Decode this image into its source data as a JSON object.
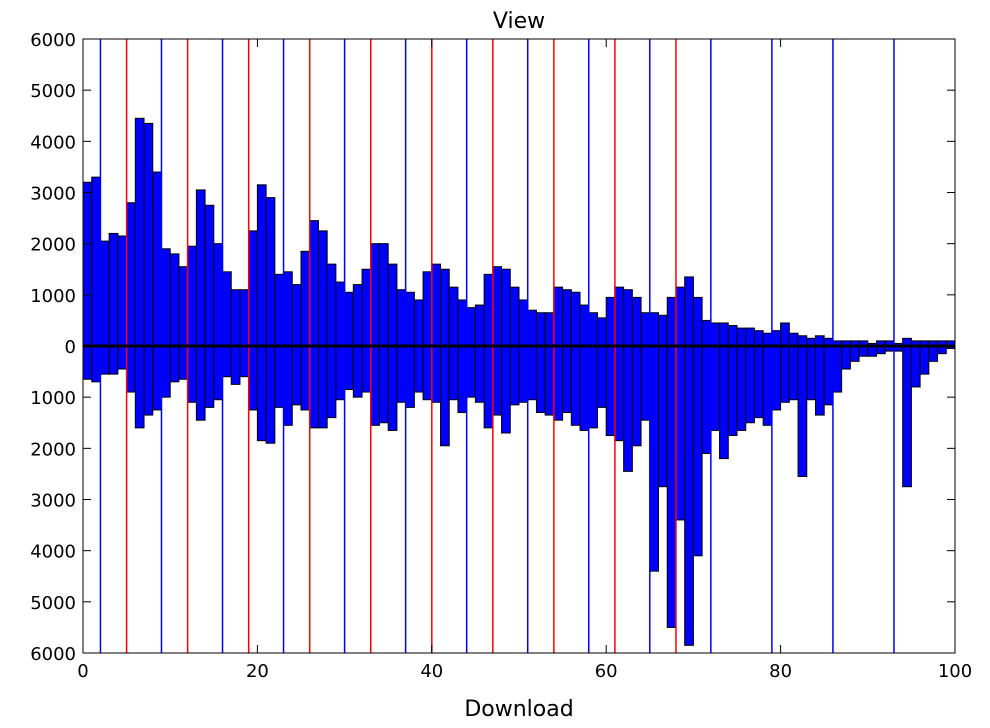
{
  "chart_data": {
    "type": "bar",
    "title": "View",
    "xlabel": "Download",
    "ylabel": "",
    "xlim": [
      0,
      100
    ],
    "ylim": [
      -6000,
      6000
    ],
    "x_ticks": [
      0,
      20,
      40,
      60,
      80,
      100
    ],
    "x_tick_labels": [
      "0",
      "20",
      "40",
      "60",
      "80",
      "100"
    ],
    "y_ticks": [
      6000,
      5000,
      4000,
      3000,
      2000,
      1000,
      0,
      -1000,
      -2000,
      -3000,
      -4000,
      -5000,
      -6000
    ],
    "y_tick_labels": [
      "6000",
      "5000",
      "4000",
      "3000",
      "2000",
      "1000",
      "0",
      "1000",
      "2000",
      "3000",
      "4000",
      "5000",
      "6000"
    ],
    "bar_color": "#0000ff",
    "bar_edge_color": "#000000",
    "grid": false,
    "x": [
      0,
      1,
      2,
      3,
      4,
      5,
      6,
      7,
      8,
      9,
      10,
      11,
      12,
      13,
      14,
      15,
      16,
      17,
      18,
      19,
      20,
      21,
      22,
      23,
      24,
      25,
      26,
      27,
      28,
      29,
      30,
      31,
      32,
      33,
      34,
      35,
      36,
      37,
      38,
      39,
      40,
      41,
      42,
      43,
      44,
      45,
      46,
      47,
      48,
      49,
      50,
      51,
      52,
      53,
      54,
      55,
      56,
      57,
      58,
      59,
      60,
      61,
      62,
      63,
      64,
      65,
      66,
      67,
      68,
      69,
      70,
      71,
      72,
      73,
      74,
      75,
      76,
      77,
      78,
      79,
      80,
      81,
      82,
      83,
      84,
      85,
      86,
      87,
      88,
      89,
      90,
      91,
      92,
      93,
      94,
      95,
      96,
      97,
      98,
      99
    ],
    "series": [
      {
        "values": [
          3200,
          3300,
          2050,
          2200,
          2150,
          2800,
          4450,
          4350,
          3400,
          1900,
          1800,
          1550,
          1950,
          3050,
          2750,
          2000,
          1450,
          1100,
          1100,
          2250,
          3150,
          2900,
          1400,
          1450,
          1200,
          1850,
          2450,
          2250,
          1600,
          1250,
          1050,
          1200,
          1500,
          2000,
          2000,
          1600,
          1100,
          1050,
          900,
          1450,
          1600,
          1500,
          1150,
          900,
          750,
          800,
          1400,
          1550,
          1500,
          1150,
          900,
          700,
          650,
          650,
          1150,
          1100,
          1050,
          800,
          650,
          550,
          950,
          1150,
          1100,
          950,
          650,
          650,
          600,
          950,
          1150,
          1350,
          950,
          500,
          450,
          450,
          400,
          350,
          350,
          300,
          250,
          300,
          450,
          250,
          200,
          150,
          200,
          150,
          100,
          100,
          100,
          100,
          50,
          100,
          100,
          50,
          150,
          100,
          100,
          100,
          100,
          100
        ]
      },
      {
        "values": [
          -650,
          -700,
          -550,
          -550,
          -450,
          -900,
          -1600,
          -1350,
          -1250,
          -1000,
          -700,
          -650,
          -1100,
          -1450,
          -1200,
          -1050,
          -600,
          -750,
          -600,
          -1250,
          -1850,
          -1900,
          -1200,
          -1550,
          -1150,
          -1250,
          -1600,
          -1600,
          -1400,
          -1050,
          -850,
          -1000,
          -900,
          -1550,
          -1500,
          -1650,
          -1100,
          -1200,
          -900,
          -1050,
          -1100,
          -1950,
          -1050,
          -1300,
          -1000,
          -1100,
          -1600,
          -1350,
          -1700,
          -1150,
          -1100,
          -1050,
          -1300,
          -1350,
          -1450,
          -1300,
          -1550,
          -1650,
          -1600,
          -1200,
          -1750,
          -1850,
          -2450,
          -1950,
          -1450,
          -4400,
          -2750,
          -5500,
          -3400,
          -5850,
          -4100,
          -2100,
          -1650,
          -2200,
          -1750,
          -1650,
          -1500,
          -1400,
          -1550,
          -1250,
          -1100,
          -1050,
          -2550,
          -1050,
          -1350,
          -1150,
          -900,
          -450,
          -300,
          -200,
          -200,
          -150,
          -100,
          -100,
          -2750,
          -800,
          -550,
          -300,
          -150,
          -50
        ]
      }
    ],
    "vertical_lines": [
      {
        "x": 2,
        "color": "#0000ff"
      },
      {
        "x": 9,
        "color": "#0000ff"
      },
      {
        "x": 16,
        "color": "#0000ff"
      },
      {
        "x": 23,
        "color": "#0000ff"
      },
      {
        "x": 30,
        "color": "#0000ff"
      },
      {
        "x": 37,
        "color": "#0000ff"
      },
      {
        "x": 44,
        "color": "#0000ff"
      },
      {
        "x": 51,
        "color": "#0000ff"
      },
      {
        "x": 58,
        "color": "#0000ff"
      },
      {
        "x": 65,
        "color": "#0000ff"
      },
      {
        "x": 72,
        "color": "#0000ff"
      },
      {
        "x": 79,
        "color": "#0000ff"
      },
      {
        "x": 86,
        "color": "#0000ff"
      },
      {
        "x": 93,
        "color": "#0000ff"
      },
      {
        "x": 5,
        "color": "#ff0000"
      },
      {
        "x": 12,
        "color": "#ff0000"
      },
      {
        "x": 19,
        "color": "#ff0000"
      },
      {
        "x": 26,
        "color": "#ff0000"
      },
      {
        "x": 33,
        "color": "#ff0000"
      },
      {
        "x": 40,
        "color": "#ff0000"
      },
      {
        "x": 47,
        "color": "#ff0000"
      },
      {
        "x": 54,
        "color": "#ff0000"
      },
      {
        "x": 61,
        "color": "#ff0000"
      },
      {
        "x": 68,
        "color": "#ff0000"
      }
    ],
    "zero_line_color": "#000000"
  }
}
